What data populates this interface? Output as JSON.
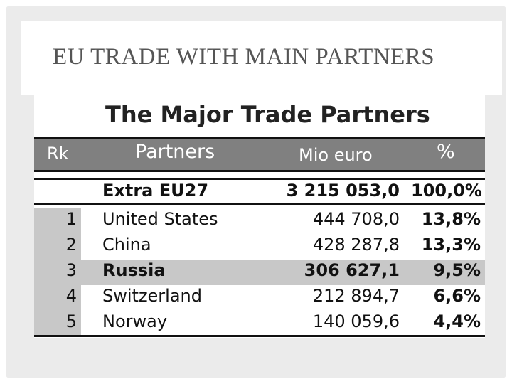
{
  "header": {
    "title": "EU TRADE WITH MAIN PARTNERS"
  },
  "table": {
    "title": "The Major Trade Partners",
    "columns": [
      "Rk",
      "Partners",
      "Mio euro",
      "%"
    ],
    "total": [
      "Extra EU27",
      "3 215 053,0",
      "100,0%"
    ],
    "rows": [
      [
        "1",
        "United States",
        "444 708,0",
        "13,8%"
      ],
      [
        "2",
        "China",
        "428 287,8",
        "13,3%"
      ],
      [
        "3",
        "Russia",
        "306 627,1",
        "9,5%"
      ],
      [
        "4",
        "Switzerland",
        "212 894,7",
        "6,6%"
      ],
      [
        "5",
        "Norway",
        "140 059,6",
        "4,4%"
      ]
    ]
  }
}
